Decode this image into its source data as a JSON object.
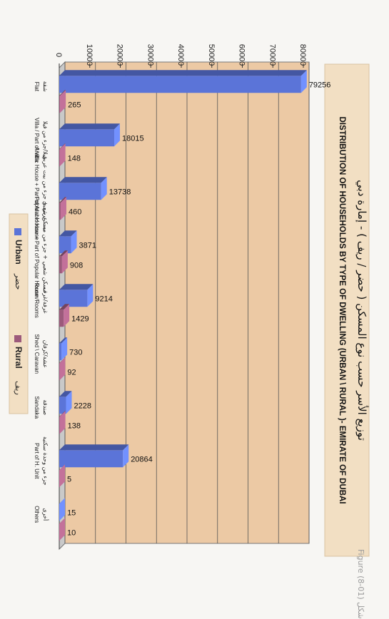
{
  "figure_label": "Figure (8-01) شكل",
  "chart_data": {
    "type": "bar",
    "title": "DISTRIBUTION OF HOUSEHOLDS BY TYPE OF DWELLING (URBAN \\ RURAL )- EMIRATE OF DUBAI",
    "title_ar": "توزيع الأسر حسب نوع المسكن ( حضر / ريف ) - إمارة دبي",
    "categories": [
      {
        "en": "Flat",
        "ar": "شقة"
      },
      {
        "en": "Villa / Part of Villa",
        "ar": "فيلا/جزء من فيلا"
      },
      {
        "en": "Arabic House + Part of Arabic House",
        "ar": "بيت عربي + جزء من بيت عربي"
      },
      {
        "en": "Popular House + Part of Popular House",
        "ar": "مسكن شعبي + جزء من مسكن شعبي"
      },
      {
        "en": "Room/Rooms",
        "ar": "غرفة/غرف"
      },
      {
        "en": "Shed \\ Caravan",
        "ar": "عشة/كرفان"
      },
      {
        "en": "Sandaka",
        "ar": "صندقة"
      },
      {
        "en": "Part of H. Unit",
        "ar": "جزء من وحدة سكنية"
      },
      {
        "en": "Others",
        "ar": "أخرى"
      }
    ],
    "series": [
      {
        "name": "Urban",
        "name_ar": "حضر",
        "color": "#5b74d8",
        "values": [
          79256,
          18015,
          13738,
          3871,
          9214,
          730,
          2228,
          20864,
          15
        ]
      },
      {
        "name": "Rural",
        "name_ar": "ريف",
        "color": "#9c5a7b",
        "values": [
          265,
          148,
          460,
          908,
          1429,
          92,
          138,
          5,
          10
        ]
      }
    ],
    "ylim": [
      0,
      80000
    ],
    "yticks": [
      0,
      10000,
      20000,
      30000,
      40000,
      50000,
      60000,
      70000,
      80000
    ],
    "grid": true,
    "legend": "bottom",
    "colors": {
      "plot_bg": "#ecc9a4",
      "grid": "#555555",
      "title_bg": "#f2dfc3",
      "legend_bg": "#f2dfc3"
    }
  }
}
